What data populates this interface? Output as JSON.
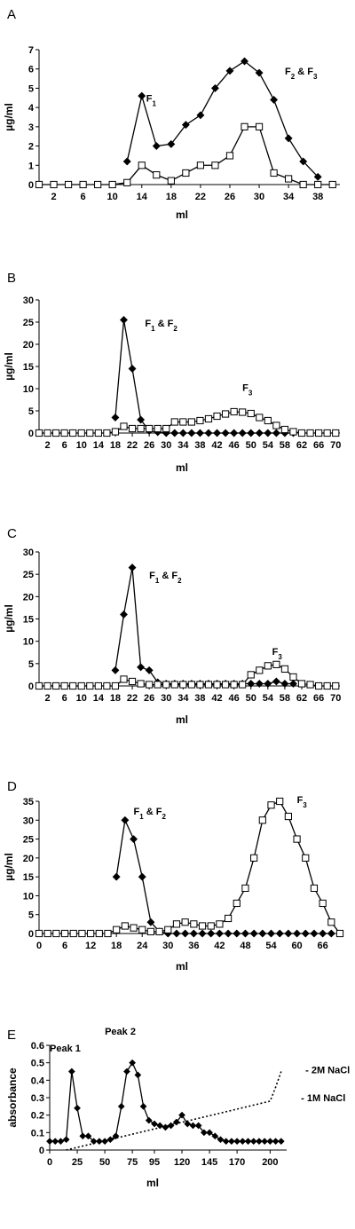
{
  "chart_data": [
    {
      "panel": "A",
      "type": "line",
      "xlabel": "ml",
      "ylabel": "µg/ml",
      "ylim": [
        0,
        7
      ],
      "yticks": [
        0,
        1,
        2,
        3,
        4,
        5,
        6,
        7
      ],
      "xticks": [
        "2",
        "6",
        "10",
        "14",
        "18",
        "22",
        "26",
        "30",
        "34",
        "38"
      ],
      "xticks_raw": [
        2,
        6,
        10,
        14,
        18,
        22,
        26,
        30,
        34,
        38
      ],
      "xlim": [
        0,
        41
      ],
      "series": [
        {
          "marker": "diamond",
          "x": [
            12,
            14,
            16,
            18,
            20,
            22,
            24,
            26,
            28,
            30,
            32,
            34,
            36,
            38
          ],
          "y": [
            1.2,
            4.6,
            2.0,
            2.1,
            3.1,
            3.6,
            5.0,
            5.9,
            6.4,
            5.8,
            4.4,
            2.4,
            1.2,
            0.4
          ]
        },
        {
          "marker": "square",
          "x": [
            0,
            2,
            4,
            6,
            8,
            10,
            12,
            14,
            16,
            18,
            20,
            22,
            24,
            26,
            28,
            30,
            32,
            34,
            36,
            38,
            40
          ],
          "y": [
            0,
            0,
            0,
            0,
            0,
            0,
            0.1,
            1.0,
            0.5,
            0.2,
            0.6,
            1.0,
            1.0,
            1.5,
            3.0,
            3.0,
            0.6,
            0.3,
            0,
            0,
            0
          ]
        }
      ],
      "annotations": [
        {
          "text": "F",
          "sub": "1",
          "x": 14.6,
          "y": 4.3
        },
        {
          "text": "F",
          "sub": "2",
          "rest": " & F",
          "sub2": "3",
          "x": 33.5,
          "y": 5.7
        }
      ]
    },
    {
      "panel": "B",
      "type": "line",
      "xlabel": "ml",
      "ylabel": "µg/ml",
      "ylim": [
        0,
        30
      ],
      "yticks": [
        0,
        5,
        10,
        15,
        20,
        25,
        30
      ],
      "xticks": [
        "2",
        "6",
        "10",
        "14",
        "18",
        "22",
        "26",
        "30",
        "34",
        "38",
        "42",
        "46",
        "50",
        "54",
        "58",
        "62",
        "66",
        "70"
      ],
      "xticks_raw": [
        2,
        6,
        10,
        14,
        18,
        22,
        26,
        30,
        34,
        38,
        42,
        46,
        50,
        54,
        58,
        62,
        66,
        70
      ],
      "xlim": [
        0,
        71
      ],
      "series": [
        {
          "marker": "diamond",
          "x": [
            18,
            20,
            22,
            24,
            26,
            28,
            30,
            32,
            34,
            36,
            38,
            40,
            42,
            44,
            46,
            48,
            50,
            52,
            54,
            56,
            58,
            60
          ],
          "y": [
            3.5,
            25.5,
            14.5,
            3.0,
            0.5,
            0.2,
            0,
            0,
            0,
            0,
            0,
            0,
            0,
            0,
            0,
            0,
            0,
            0,
            0,
            0,
            0,
            0
          ]
        },
        {
          "marker": "square",
          "x": [
            0,
            2,
            4,
            6,
            8,
            10,
            12,
            14,
            16,
            18,
            20,
            22,
            24,
            26,
            28,
            30,
            32,
            34,
            36,
            38,
            40,
            42,
            44,
            46,
            48,
            50,
            52,
            54,
            56,
            58,
            60,
            62,
            64,
            66,
            68,
            70
          ],
          "y": [
            0,
            0,
            0,
            0,
            0,
            0,
            0,
            0,
            0,
            0.3,
            1.5,
            1.0,
            1.0,
            1.0,
            1.0,
            1.0,
            2.5,
            2.5,
            2.5,
            2.8,
            3.2,
            3.8,
            4.3,
            4.8,
            4.7,
            4.4,
            3.5,
            2.8,
            1.7,
            0.8,
            0.3,
            0,
            0,
            0,
            0,
            0
          ]
        }
      ],
      "annotations": [
        {
          "text": "F",
          "sub": "1",
          "rest": " & F",
          "sub2": "2",
          "x": 25,
          "y": 24
        },
        {
          "text": "F",
          "sub": "3",
          "x": 48,
          "y": 9.5
        }
      ]
    },
    {
      "panel": "C",
      "type": "line",
      "xlabel": "ml",
      "ylabel": "µg/ml",
      "ylim": [
        0,
        30
      ],
      "yticks": [
        0,
        5,
        10,
        15,
        20,
        25,
        30
      ],
      "xticks": [
        "2",
        "6",
        "10",
        "14",
        "18",
        "22",
        "26",
        "30",
        "34",
        "38",
        "42",
        "46",
        "50",
        "54",
        "58",
        "62",
        "66",
        "70"
      ],
      "xticks_raw": [
        2,
        6,
        10,
        14,
        18,
        22,
        26,
        30,
        34,
        38,
        42,
        46,
        50,
        54,
        58,
        62,
        66,
        70
      ],
      "xlim": [
        0,
        71
      ],
      "series": [
        {
          "marker": "diamond",
          "x": [
            18,
            20,
            22,
            24,
            26,
            28,
            30,
            32,
            34,
            36,
            38,
            40,
            42,
            44,
            46,
            48,
            50,
            52,
            54,
            56,
            58,
            60
          ],
          "y": [
            3.5,
            16.0,
            26.5,
            4.2,
            3.5,
            0.8,
            0.5,
            0.5,
            0.5,
            0.5,
            0.5,
            0.5,
            0.5,
            0.5,
            0.5,
            0.5,
            0.5,
            0.5,
            0.5,
            1.0,
            0.5,
            0.5
          ]
        },
        {
          "marker": "square",
          "x": [
            0,
            2,
            4,
            6,
            8,
            10,
            12,
            14,
            16,
            18,
            20,
            22,
            24,
            26,
            28,
            30,
            32,
            34,
            36,
            38,
            40,
            42,
            44,
            46,
            48,
            50,
            52,
            54,
            56,
            58,
            60,
            62,
            64,
            66,
            68,
            70
          ],
          "y": [
            0,
            0,
            0,
            0,
            0,
            0,
            0,
            0,
            0,
            0,
            1.5,
            1.0,
            0.5,
            0.3,
            0.3,
            0.3,
            0.3,
            0.3,
            0.3,
            0.3,
            0.3,
            0.3,
            0.3,
            0.3,
            0.3,
            2.5,
            3.5,
            4.5,
            4.8,
            3.8,
            2.0,
            0.5,
            0.3,
            0,
            0,
            0
          ]
        }
      ],
      "annotations": [
        {
          "text": "F",
          "sub": "1",
          "rest": " & F",
          "sub2": "2",
          "x": 26,
          "y": 24
        },
        {
          "text": "F",
          "sub": "3",
          "x": 55,
          "y": 7
        }
      ]
    },
    {
      "panel": "D",
      "type": "line",
      "xlabel": "ml",
      "ylabel": "µg/ml",
      "ylim": [
        0,
        35
      ],
      "yticks": [
        0,
        5,
        10,
        15,
        20,
        25,
        30,
        35
      ],
      "xticks": [
        "0",
        "6",
        "12",
        "18",
        "24",
        "30",
        "36",
        "42",
        "48",
        "54",
        "60",
        "66"
      ],
      "xticks_raw": [
        0,
        6,
        12,
        18,
        24,
        30,
        36,
        42,
        48,
        54,
        60,
        66
      ],
      "xlim": [
        0,
        70
      ],
      "series": [
        {
          "marker": "diamond",
          "x": [
            18,
            20,
            22,
            24,
            26,
            28,
            30,
            32,
            34,
            36,
            38,
            40,
            42,
            44,
            46,
            48,
            50,
            52,
            54,
            56,
            58,
            60,
            62,
            64,
            66,
            68
          ],
          "y": [
            15,
            30,
            25,
            15,
            3,
            0.5,
            0,
            0,
            0,
            0,
            0,
            0,
            0,
            0,
            0,
            0,
            0,
            0,
            0,
            0,
            0,
            0,
            0,
            0,
            0,
            0
          ]
        },
        {
          "marker": "square",
          "x": [
            0,
            2,
            4,
            6,
            8,
            10,
            12,
            14,
            16,
            18,
            20,
            22,
            24,
            26,
            28,
            30,
            32,
            34,
            36,
            38,
            40,
            42,
            44,
            46,
            48,
            50,
            52,
            54,
            56,
            58,
            60,
            62,
            64,
            66,
            68,
            70
          ],
          "y": [
            0,
            0,
            0,
            0,
            0,
            0,
            0,
            0,
            0,
            1.0,
            2.0,
            1.5,
            1.0,
            0.5,
            0.5,
            1.0,
            2.5,
            3.0,
            2.5,
            2.0,
            2.0,
            2.5,
            4.0,
            8.0,
            12.0,
            20.0,
            30.0,
            34.0,
            35.0,
            31.0,
            25.0,
            20.0,
            12.0,
            8.0,
            3.0,
            0
          ]
        }
      ],
      "annotations": [
        {
          "text": "F",
          "sub": "1",
          "rest": " & F",
          "sub2": "2",
          "x": 22,
          "y": 31.5
        },
        {
          "text": "F",
          "sub": "3",
          "x": 60,
          "y": 34.5
        }
      ]
    },
    {
      "panel": "E",
      "type": "line",
      "xlabel": "ml",
      "ylabel": "absorbance",
      "ylim": [
        0,
        0.6
      ],
      "yticks": [
        0,
        0.1,
        0.2,
        0.3,
        0.4,
        0.5,
        0.6
      ],
      "yticklabels": [
        "0",
        "0.1",
        "0.2",
        "0.3",
        "0.4",
        "0.5",
        "0.6"
      ],
      "xticks": [
        "0",
        "25",
        "50",
        "75",
        "95",
        "120",
        "145",
        "170",
        "200"
      ],
      "xticks_raw": [
        0,
        25,
        50,
        75,
        95,
        120,
        145,
        170,
        200
      ],
      "xlim": [
        0,
        215
      ],
      "series": [
        {
          "marker": "diamond",
          "x": [
            0,
            5,
            10,
            15,
            20,
            25,
            30,
            35,
            40,
            45,
            50,
            55,
            60,
            65,
            70,
            75,
            80,
            85,
            90,
            95,
            100,
            105,
            110,
            115,
            120,
            125,
            130,
            135,
            140,
            145,
            150,
            155,
            160,
            165,
            170,
            175,
            180,
            185,
            190,
            195,
            200,
            205,
            210
          ],
          "y": [
            0.05,
            0.05,
            0.05,
            0.06,
            0.45,
            0.24,
            0.08,
            0.08,
            0.05,
            0.05,
            0.05,
            0.06,
            0.08,
            0.25,
            0.45,
            0.5,
            0.43,
            0.25,
            0.17,
            0.15,
            0.14,
            0.13,
            0.14,
            0.16,
            0.2,
            0.15,
            0.14,
            0.14,
            0.1,
            0.1,
            0.08,
            0.06,
            0.05,
            0.05,
            0.05,
            0.05,
            0.05,
            0.05,
            0.05,
            0.05,
            0.05,
            0.05,
            0.05
          ]
        },
        {
          "style": "dotted",
          "x": [
            15,
            200,
            205,
            210
          ],
          "y": [
            0.0,
            0.28,
            0.36,
            0.45
          ]
        }
      ],
      "annotations": [
        {
          "text": "Peak 1",
          "x": 0,
          "y": 0.565
        },
        {
          "text": "Peak 2",
          "x": 50,
          "y": 0.66
        },
        {
          "text": "- 2M NaCl",
          "x": 232,
          "y": 0.44
        },
        {
          "text": "- 1M NaCl",
          "x": 228,
          "y": 0.28
        }
      ]
    }
  ],
  "panels_text": {
    "A": "A",
    "B": "B",
    "C": "C",
    "D": "D",
    "E": "E"
  }
}
